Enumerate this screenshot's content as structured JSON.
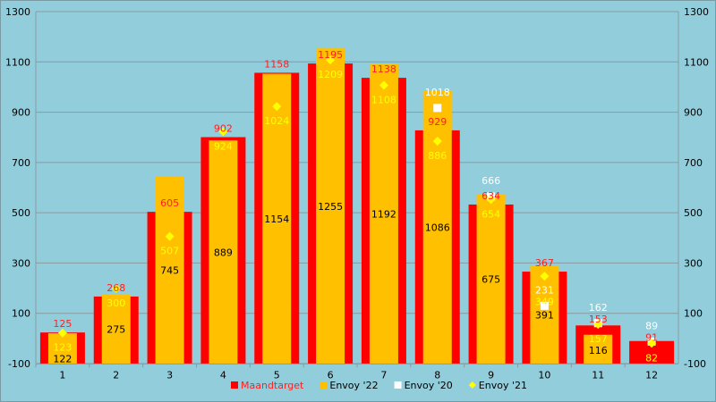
{
  "chart_data": {
    "type": "bar",
    "categories": [
      "1",
      "2",
      "3",
      "4",
      "5",
      "6",
      "7",
      "8",
      "9",
      "10",
      "11",
      "12"
    ],
    "ylim": [
      -100,
      1300
    ],
    "yticks": [
      -100,
      100,
      300,
      500,
      700,
      900,
      1100,
      1300
    ],
    "grid": true,
    "legend_position": "bottom",
    "series": [
      {
        "name": "Maandtarget",
        "kind": "bar",
        "color": "#FF0000",
        "label_color": "#FF2020",
        "values": [
          125,
          268,
          605,
          902,
          1158,
          1195,
          1138,
          929,
          634,
          367,
          153,
          91
        ]
      },
      {
        "name": "Envoy '22",
        "kind": "bar",
        "color": "#FFC000",
        "label_color": "#000000",
        "values": [
          122,
          275,
          745,
          889,
          1154,
          1255,
          1192,
          1086,
          675,
          391,
          116,
          null
        ]
      },
      {
        "name": "Envoy '20",
        "kind": "marker-square",
        "color": "#FFFFFF",
        "label_color": "#FFFFFF",
        "values": [
          null,
          null,
          null,
          null,
          null,
          null,
          null,
          1018,
          666,
          231,
          162,
          89
        ]
      },
      {
        "name": "Envoy '21",
        "kind": "marker-diamond",
        "color": "#FFFF00",
        "label_color": "#FFFF00",
        "values": [
          123,
          300,
          507,
          924,
          1024,
          1209,
          1108,
          886,
          654,
          349,
          157,
          82
        ]
      }
    ]
  }
}
